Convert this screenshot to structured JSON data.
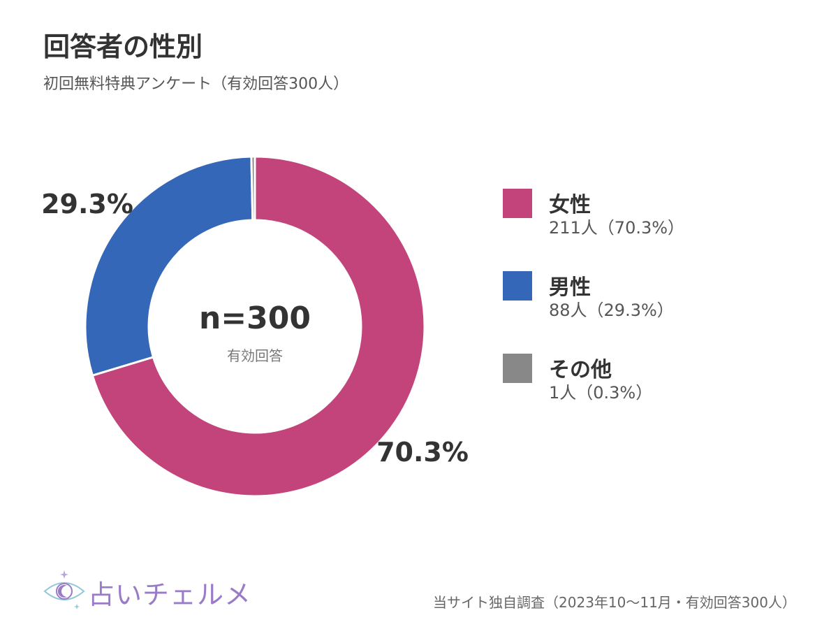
{
  "header": {
    "title": "回答者の性別",
    "subtitle": "初回無料特典アンケート（有効回答300人）"
  },
  "center": {
    "n_label": "n=300",
    "sub_label": "有効回答"
  },
  "legend": [
    {
      "label": "女性",
      "detail": "211人（70.3%）",
      "color": "#c2447a"
    },
    {
      "label": "男性",
      "detail": "88人（29.3%）",
      "color": "#3567b8"
    },
    {
      "label": "その他",
      "detail": "1人（0.3%）",
      "color": "#888888"
    }
  ],
  "footer": {
    "logo_text": "占いチェルメ",
    "source": "当サイト独自調査（2023年10〜11月・有効回答300人）"
  },
  "chart_data": {
    "type": "pie",
    "title": "回答者の性別",
    "subtitle": "初回無料特典アンケート（有効回答300人）",
    "categories": [
      "女性",
      "男性",
      "その他"
    ],
    "values": [
      211,
      88,
      1
    ],
    "percentages": [
      70.3,
      29.3,
      0.3
    ],
    "data_labels": [
      "70.3%",
      "29.3%",
      ""
    ],
    "colors": [
      "#c2447a",
      "#3567b8",
      "#888888"
    ],
    "total": 300,
    "legend_position": "right"
  }
}
